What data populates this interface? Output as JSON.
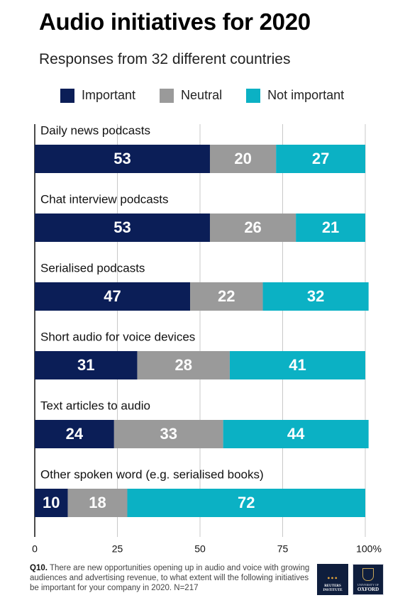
{
  "header": {
    "title": "Audio initiatives for 2020",
    "subtitle": "Responses from 32 different countries"
  },
  "colors": {
    "important": "#0b1e57",
    "neutral": "#9a9a9a",
    "not_important": "#0bb1c4",
    "grid": "#c8c8c8",
    "axis": "#111111"
  },
  "chart_data": {
    "type": "bar",
    "orientation": "horizontal",
    "stacked": true,
    "categories": [
      "Daily news podcasts",
      "Chat interview podcasts",
      "Serialised podcasts",
      "Short audio for voice devices",
      "Text articles to audio",
      "Other spoken word (e.g. serialised books)"
    ],
    "series": [
      {
        "name": "Important",
        "values": [
          53,
          53,
          47,
          31,
          24,
          10
        ]
      },
      {
        "name": "Neutral",
        "values": [
          20,
          26,
          22,
          28,
          33,
          18
        ]
      },
      {
        "name": "Not important",
        "values": [
          27,
          21,
          32,
          41,
          44,
          72
        ]
      }
    ],
    "xticks": [
      "0",
      "25",
      "50",
      "75",
      "100%"
    ],
    "xlim": [
      0,
      100
    ],
    "grid": true,
    "legend": "top"
  },
  "footnote": {
    "label": "Q10.",
    "text": "There are new opportunities opening up in audio and voice with growing audiences and advertising revenue, to what extent will the following initiatives be important for your company in 2020. N=217"
  },
  "logos": {
    "reuters_line1": "REUTERS",
    "reuters_line2": "INSTITUTE",
    "oxford_line1": "UNIVERSITY OF",
    "oxford_line2": "OXFORD"
  }
}
